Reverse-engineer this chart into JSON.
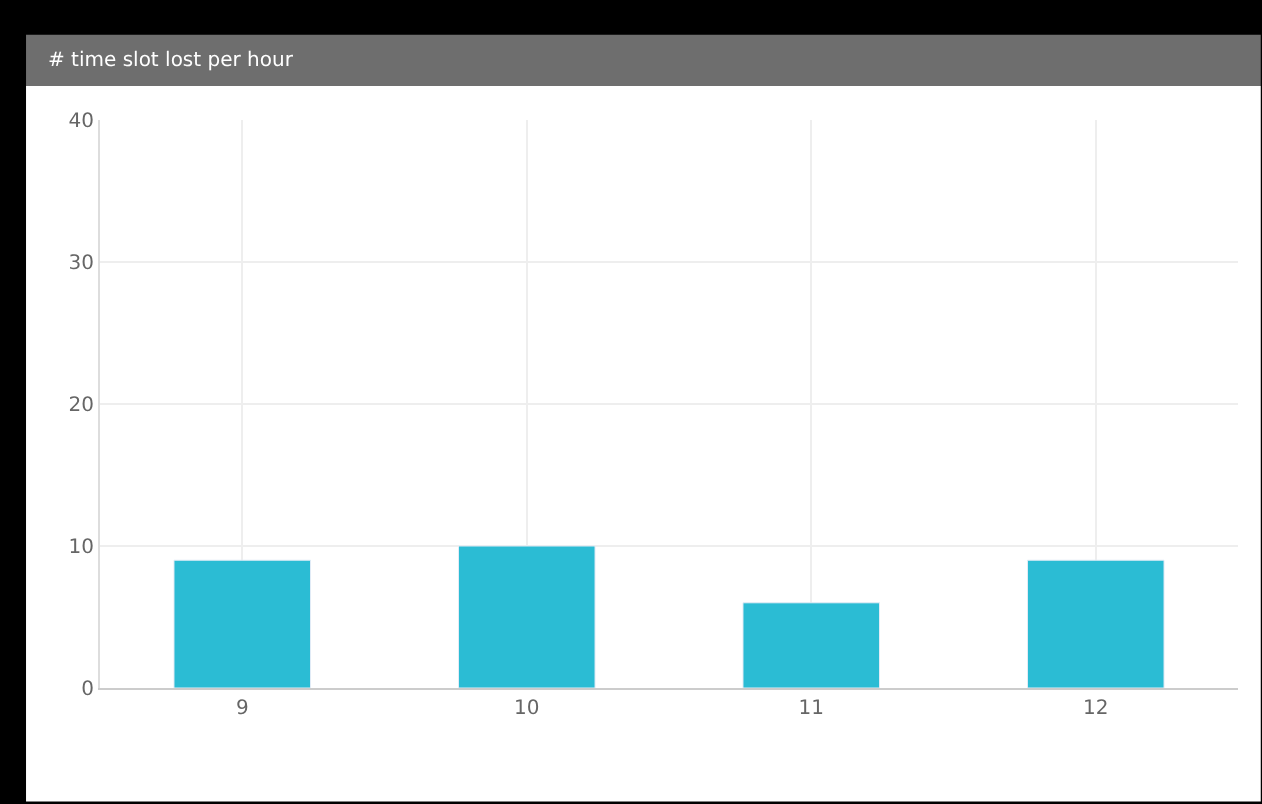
{
  "chart_data": {
    "type": "bar",
    "title": "# time slot lost per hour",
    "categories": [
      "9",
      "10",
      "11",
      "12"
    ],
    "series": [
      {
        "color": "#2bbcd4",
        "values": [
          9,
          10,
          6,
          9
        ]
      }
    ],
    "ylim": [
      0,
      40
    ],
    "yticks": [
      0,
      10,
      20,
      30,
      40
    ],
    "grid": true
  }
}
